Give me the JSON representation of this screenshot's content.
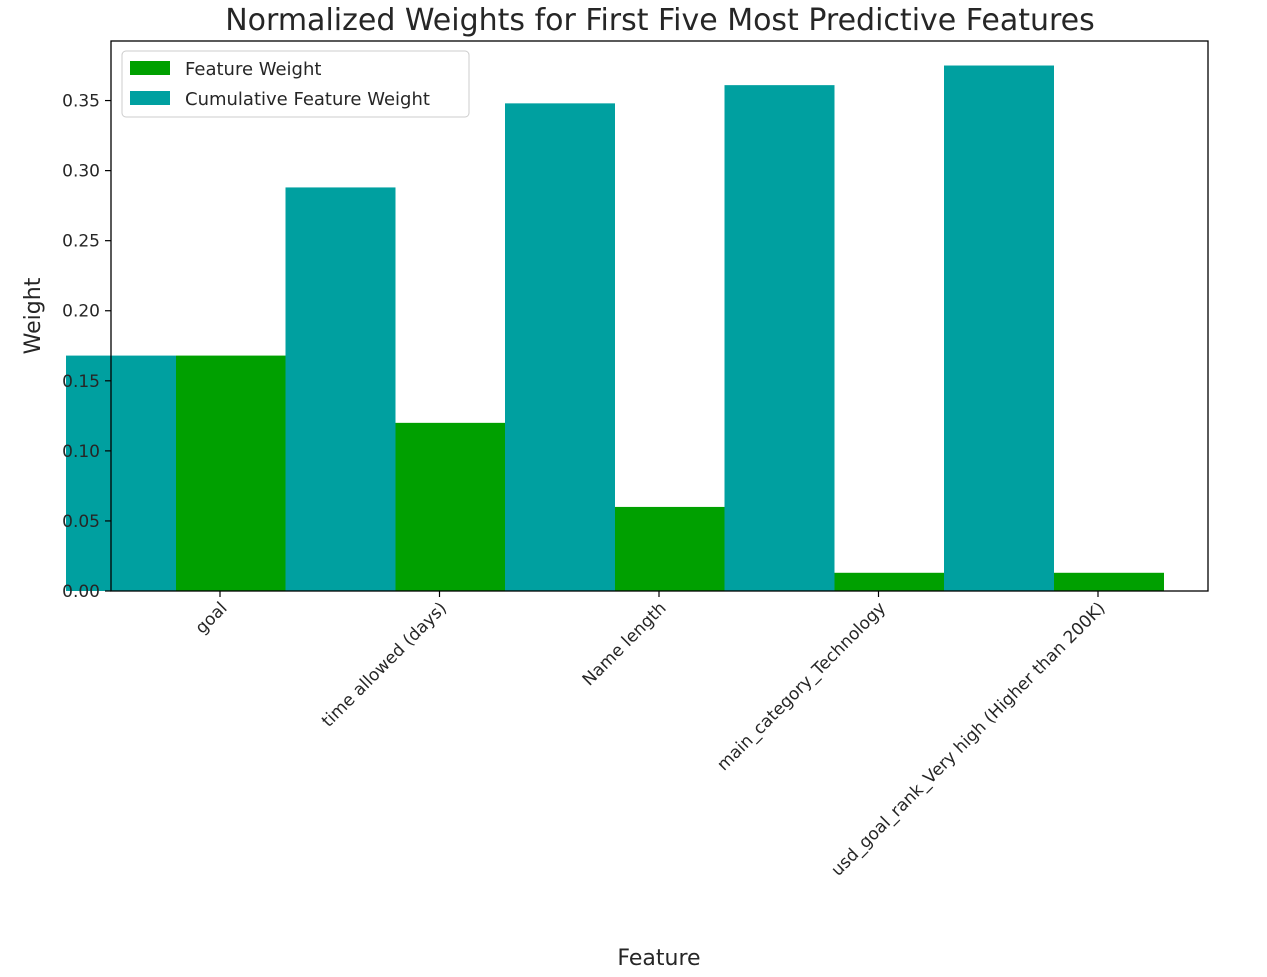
{
  "chart_data": {
    "type": "bar",
    "title": "Normalized Weights for First Five Most Predictive Features",
    "xlabel": "Feature",
    "ylabel": "Weight",
    "categories": [
      "goal",
      "time allowed (days)",
      "Name length",
      "main_category_Technology",
      "usd_goal_rank_Very high (Higher than 200K)"
    ],
    "series": [
      {
        "name": "Feature Weight",
        "color": "#00a000",
        "values": [
          0.168,
          0.12,
          0.06,
          0.013,
          0.013
        ]
      },
      {
        "name": "Cumulative Feature Weight",
        "color": "#00a0a0",
        "values": [
          0.168,
          0.288,
          0.348,
          0.361,
          0.375
        ]
      }
    ],
    "yticks": [
      "0.00",
      "0.05",
      "0.10",
      "0.15",
      "0.20",
      "0.25",
      "0.30",
      "0.35"
    ],
    "ylim": [
      0,
      0.3925
    ],
    "grid": false,
    "legend_position": "top-left"
  }
}
